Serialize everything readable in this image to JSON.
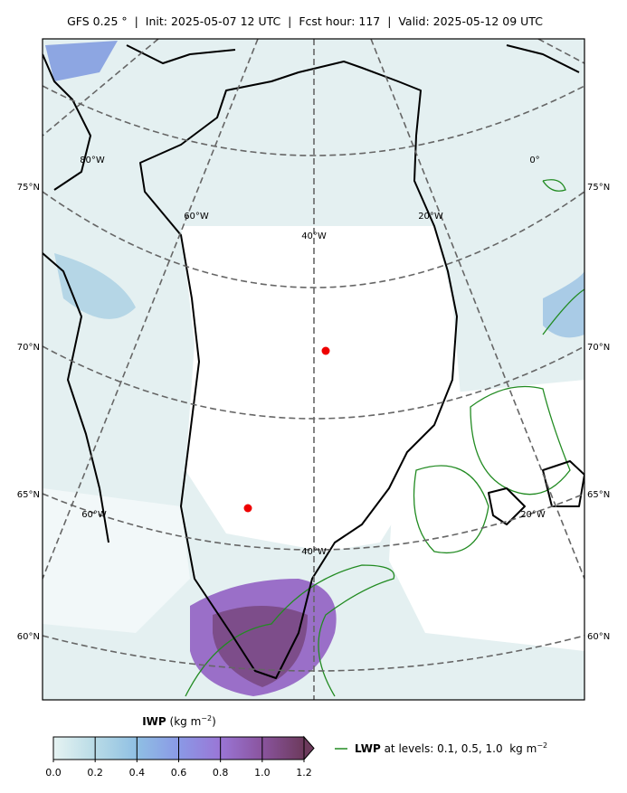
{
  "header": {
    "title": "GFS 0.25 °  |  Init: 2025-05-07 12 UTC  |  Fcst hour: 117  |  Valid: 2025-05-12 09 UTC"
  },
  "map": {
    "lat_labels_left": [
      "75°N",
      "70°N",
      "65°N",
      "60°N"
    ],
    "lat_labels_right": [
      "75°N",
      "70°N",
      "65°N",
      "60°N"
    ],
    "lon_labels_upper": [
      "80°W",
      "60°W",
      "40°W",
      "20°W",
      "0°"
    ],
    "lon_labels_lower": [
      "60°W",
      "40°W",
      "20°W"
    ],
    "graticule_color": "#666666",
    "coast_color": "#000000",
    "point_color": "#ee0000"
  },
  "colorbar": {
    "label": "IWP",
    "unit": "(kg m",
    "unit_exp": "−2",
    "unit_close": ")",
    "clim": [
      0,
      1.2
    ],
    "ticks": [
      {
        "value": 0,
        "label": "0.0"
      },
      0.2,
      0.4,
      0.6,
      0.8,
      {
        "value": 1,
        "label": "1.0"
      },
      1.2
    ],
    "colors": [
      "#e6f3f2",
      "#b8dbe6",
      "#8fbfe3",
      "#8a99e6",
      "#9a76d6",
      "#8a549e",
      "#6c3a5c"
    ]
  },
  "legend": {
    "name": "LWP",
    "text": "at levels: 0.1, 0.5, 1.0  kg m",
    "text_exp": "−2",
    "color": "#228b22"
  }
}
